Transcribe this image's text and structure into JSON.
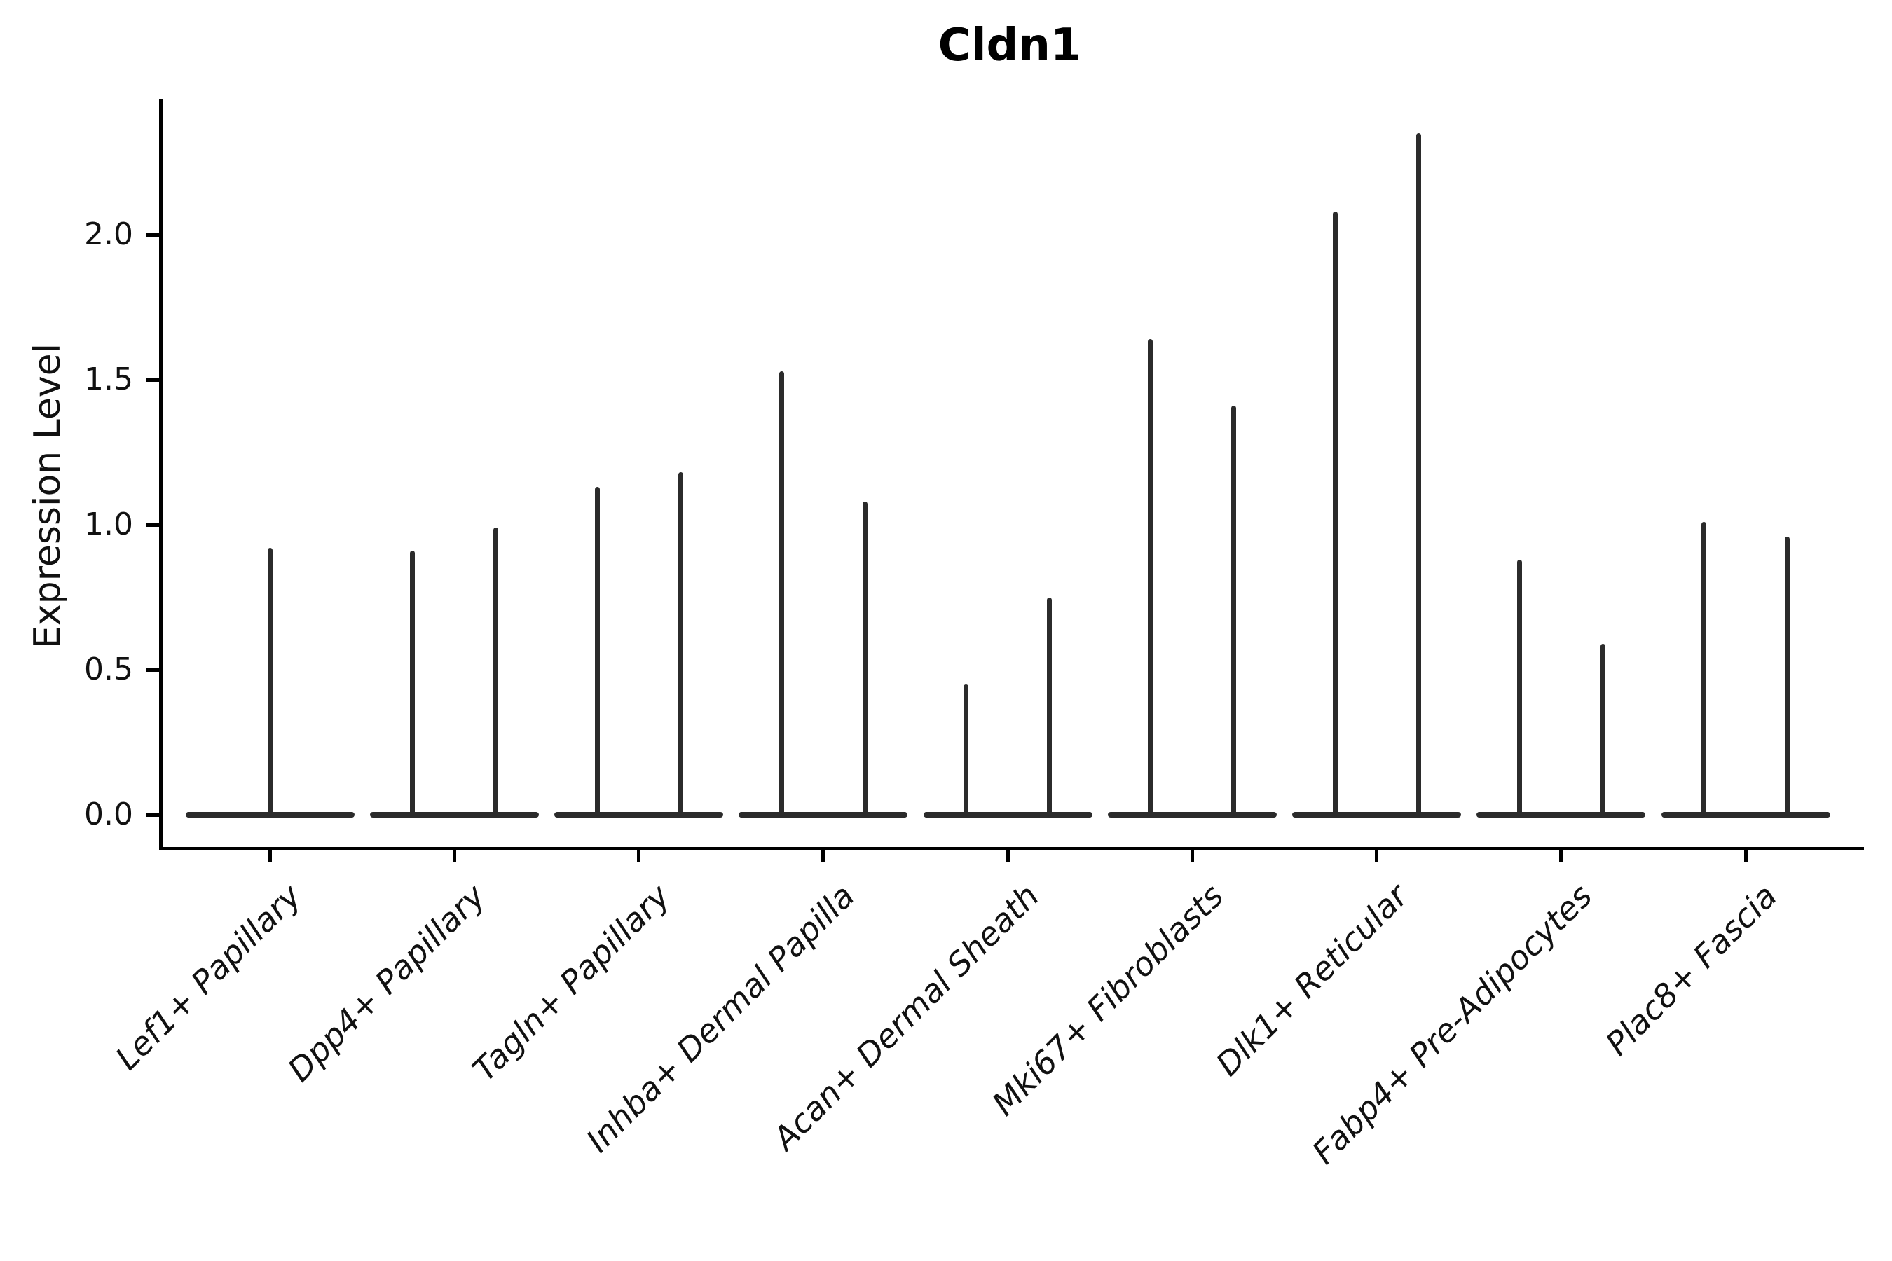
{
  "title": "Cldn1",
  "y_axis": {
    "label": "Expression Level",
    "ticks": [
      "0.0",
      "0.5",
      "1.0",
      "1.5",
      "2.0"
    ],
    "tick_values": [
      0.0,
      0.5,
      1.0,
      1.5,
      2.0
    ]
  },
  "colors": {
    "violin_line": "#2b2b2b",
    "axis": "#000000",
    "text": "#111111",
    "background": "#ffffff"
  },
  "chart_data": {
    "type": "violin",
    "title": "Cldn1",
    "xlabel": "",
    "ylabel": "Expression Level",
    "ylim": [
      -0.11,
      2.47
    ],
    "grid": false,
    "legend": "none",
    "note": "Violin plot of gene expression; nearly all density collapsed at 0 (flat baseline) with thin spikes to the max expression value. Lef1+ Papillary has one centered spike; all other cell types have two side-by-side spikes (two sub-violins).",
    "categories": [
      {
        "label": "Lef1+ Papillary",
        "spike_max_values": [
          0.92
        ]
      },
      {
        "label": "Dpp4+ Papillary",
        "spike_max_values": [
          0.91,
          0.99
        ]
      },
      {
        "label": "Tagln+ Papillary",
        "spike_max_values": [
          1.13,
          1.18
        ]
      },
      {
        "label": "Inhba+ Dermal Papilla",
        "spike_max_values": [
          1.53,
          1.08
        ]
      },
      {
        "label": "Acan+ Dermal Sheath",
        "spike_max_values": [
          0.45,
          0.75
        ]
      },
      {
        "label": "Mki67+ Fibroblasts",
        "spike_max_values": [
          1.64,
          1.41
        ]
      },
      {
        "label": "Dlk1+ Reticular",
        "spike_max_values": [
          2.08,
          2.35
        ]
      },
      {
        "label": "Fabp4+ Pre-Adipocytes",
        "spike_max_values": [
          0.88,
          0.59
        ]
      },
      {
        "label": "Plac8+ Fascia",
        "spike_max_values": [
          1.01,
          0.96
        ]
      }
    ]
  }
}
